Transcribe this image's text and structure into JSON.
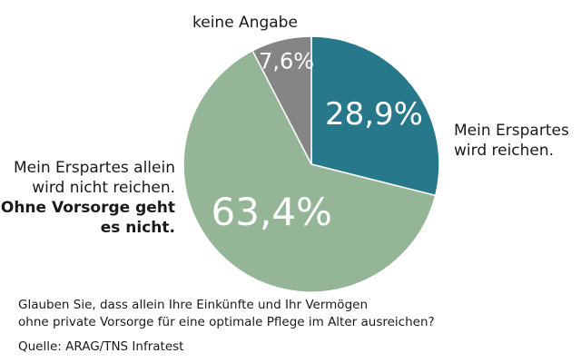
{
  "chart_data": {
    "type": "pie",
    "slices": [
      {
        "label": "Mein Erspartes wird reichen.",
        "value": 28.9,
        "value_label": "28,9%",
        "color": "#27788b"
      },
      {
        "label": "Mein Erspartes allein wird nicht reichen. Ohne Vorsorge geht es nicht.",
        "value": 63.4,
        "value_label": "63,4%",
        "color": "#94b596"
      },
      {
        "label": "keine Angabe",
        "value": 7.6,
        "value_label": "7,6%",
        "color": "#858585"
      }
    ],
    "start_angle_deg": 0,
    "direction": "clockwise"
  },
  "labels": {
    "keine_angabe": "keine Angabe",
    "erspartes_line1": "Mein Erspartes",
    "erspartes_line2": "wird reichen.",
    "nicht_line1": "Mein Erspartes allein",
    "nicht_line2": "wird nicht reichen.",
    "nicht_line3": "Ohne Vorsorge geht",
    "nicht_line4": "es nicht."
  },
  "footer": {
    "question_line1": "Glauben Sie, dass allein Ihre Einkünfte und Ihr Vermögen",
    "question_line2": "ohne private Vorsorge für eine optimale Pflege im Alter ausreichen?",
    "source": "Quelle: ARAG/TNS Infratest"
  }
}
